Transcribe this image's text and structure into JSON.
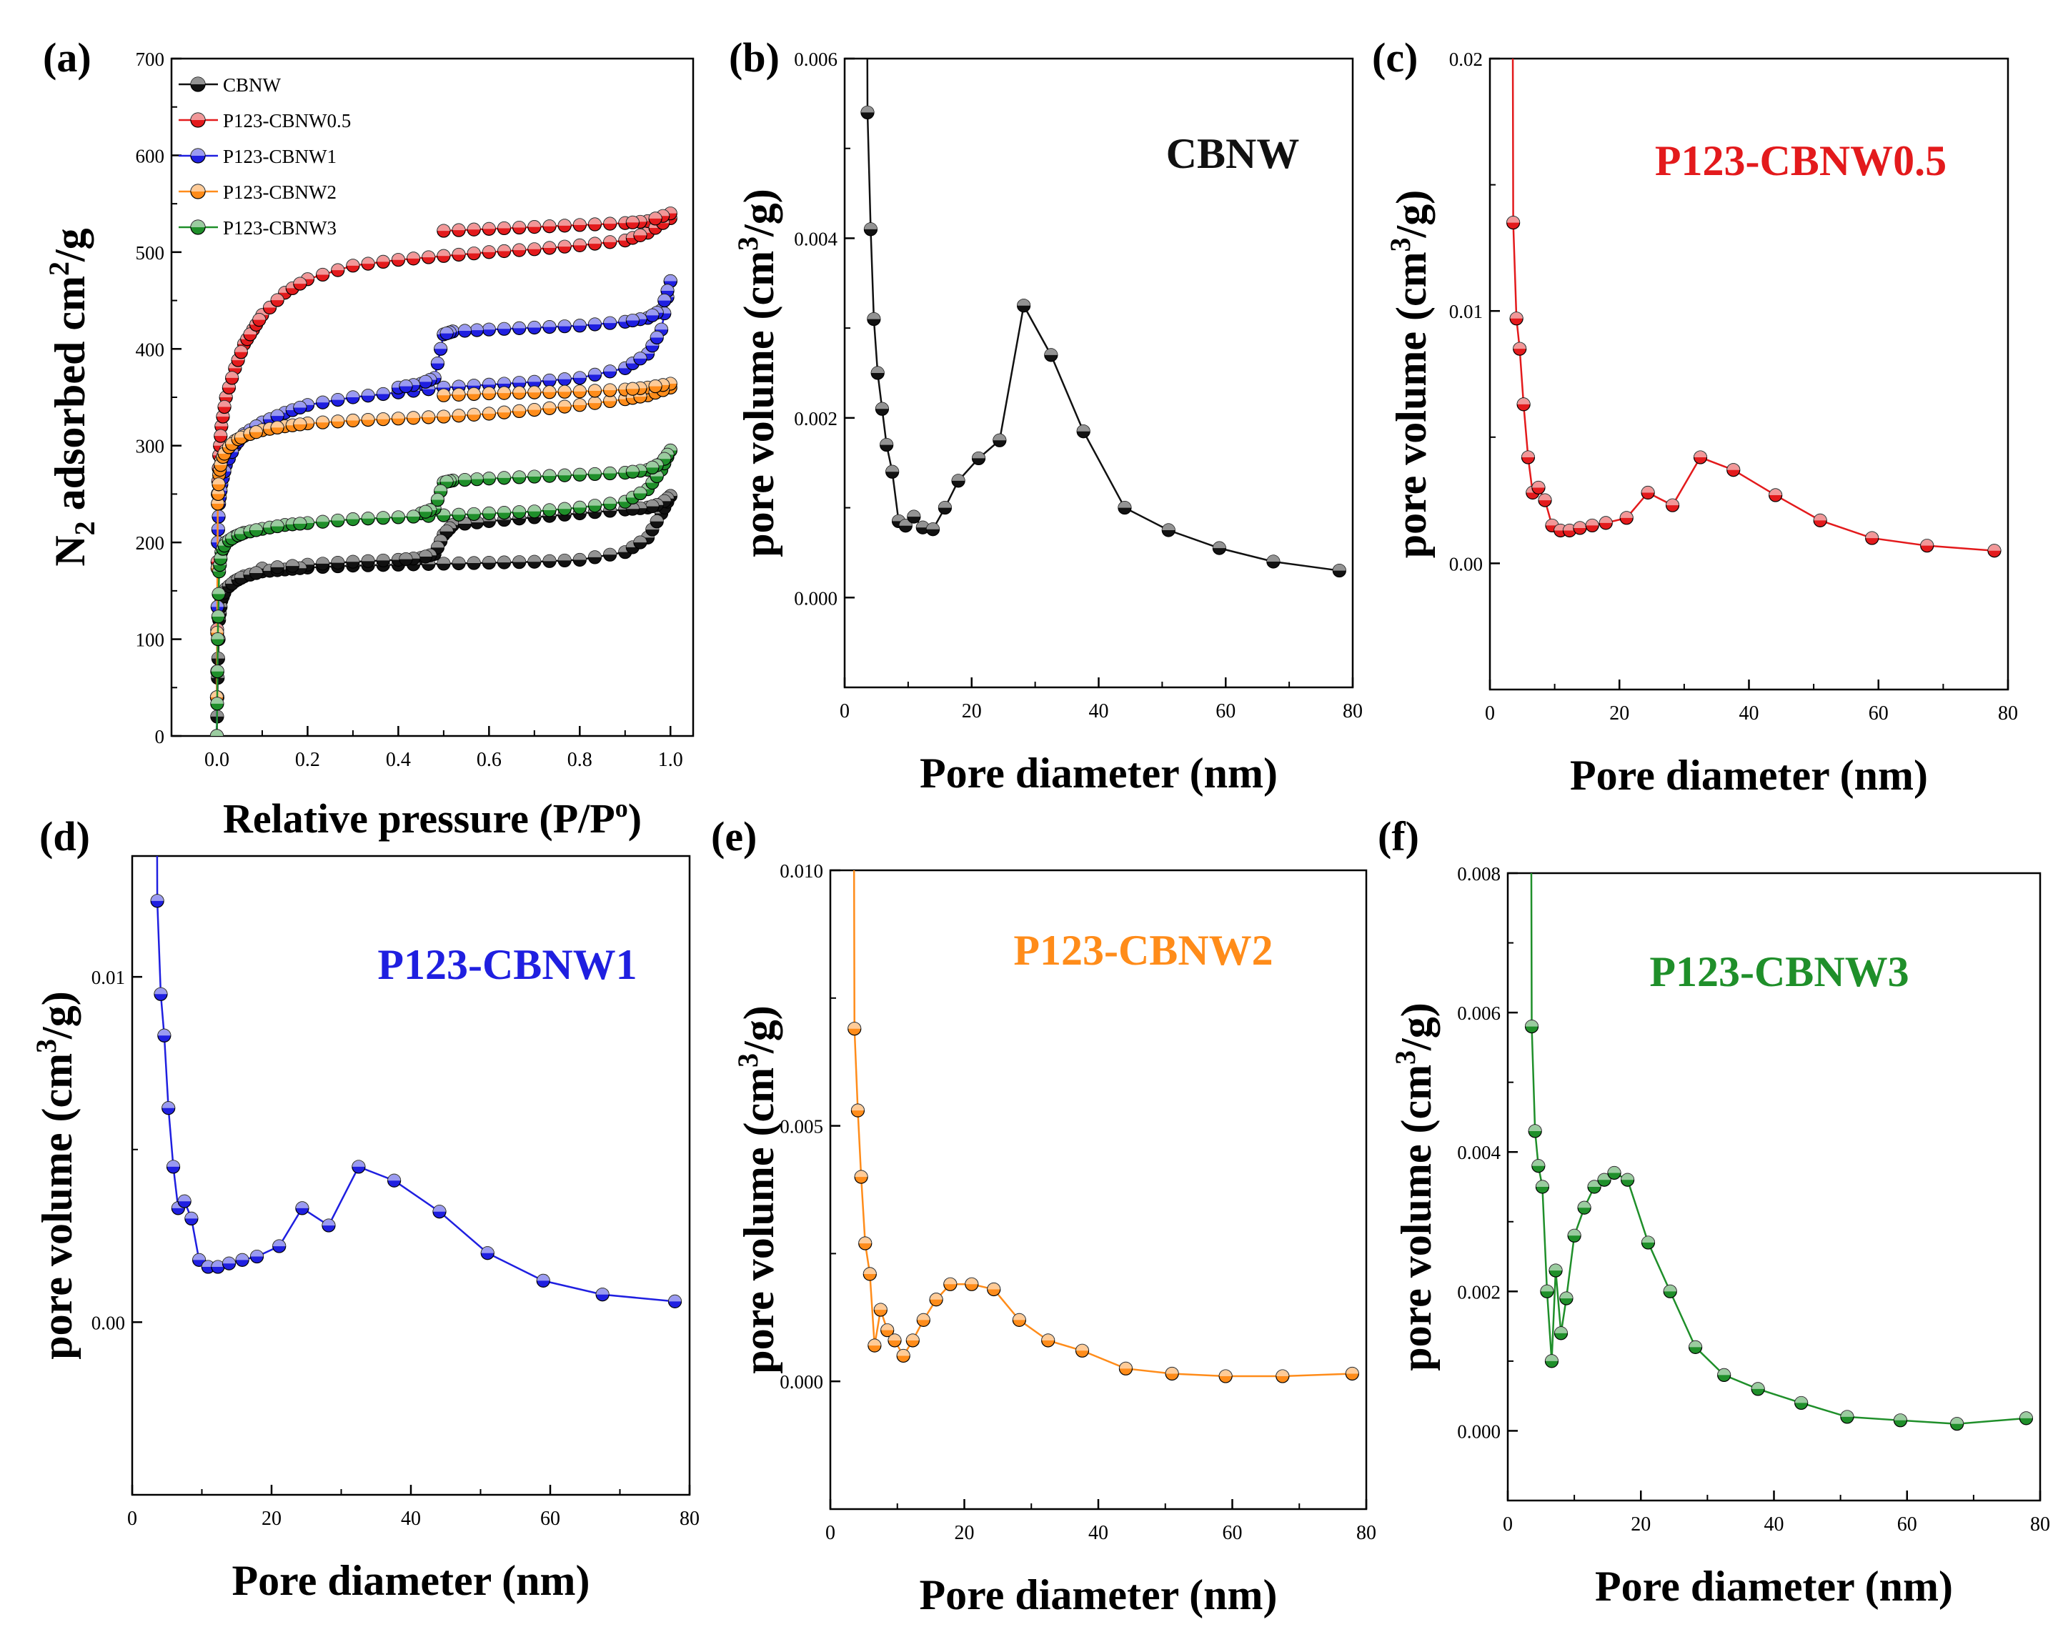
{
  "chart_data": [
    {
      "type": "scatter",
      "panel_label": "(a)",
      "xlabel": "Relative pressure (P/P",
      "xlabel_sup": "o",
      "xlabel_end": ")",
      "ylabel": "N",
      "ylabel_sub": "2",
      "ylabel_mid": " adsorbed cm",
      "ylabel_sup": "2",
      "ylabel_end": "/g",
      "xlim": [
        -0.1,
        1.05
      ],
      "ylim": [
        0,
        700
      ],
      "xticks": [
        0.0,
        0.2,
        0.4,
        0.6,
        0.8,
        1.0
      ],
      "xtick_labels": [
        "0.0",
        "0.2",
        "0.4",
        "0.6",
        "0.8",
        "1.0"
      ],
      "yticks": [
        0,
        100,
        200,
        300,
        400,
        500,
        600,
        700
      ],
      "ytick_labels": [
        "0",
        "100",
        "200",
        "300",
        "400",
        "500",
        "600",
        "700"
      ],
      "legend_position": "top-left",
      "series": [
        {
          "name": "CBNW",
          "color": "#111111",
          "adsorption_x": [
            0.0,
            0.002,
            0.005,
            0.01,
            0.02,
            0.04,
            0.06,
            0.1,
            0.15,
            0.2,
            0.3,
            0.4,
            0.5,
            0.6,
            0.7,
            0.8,
            0.9,
            0.95,
            0.98,
            1.0
          ],
          "adsorption_y": [
            0,
            60,
            120,
            140,
            152,
            160,
            165,
            170,
            172,
            174,
            176,
            177,
            178,
            179,
            180,
            182,
            190,
            205,
            230,
            248
          ],
          "desorption_x": [
            1.0,
            0.98,
            0.95,
            0.9,
            0.8,
            0.7,
            0.6,
            0.52,
            0.5,
            0.48,
            0.45,
            0.4,
            0.3,
            0.2,
            0.1
          ],
          "desorption_y": [
            248,
            240,
            236,
            234,
            230,
            226,
            222,
            218,
            208,
            188,
            184,
            182,
            180,
            177,
            173
          ]
        },
        {
          "name": "P123-CBNW0.5",
          "color": "#e31a1c",
          "adsorption_x": [
            0.0,
            0.002,
            0.005,
            0.01,
            0.02,
            0.04,
            0.06,
            0.08,
            0.1,
            0.15,
            0.2,
            0.3,
            0.4,
            0.5,
            0.6,
            0.7,
            0.8,
            0.9,
            0.95,
            1.0
          ],
          "adsorption_y": [
            40,
            250,
            290,
            320,
            350,
            380,
            405,
            420,
            435,
            458,
            472,
            486,
            492,
            496,
            500,
            503,
            507,
            512,
            520,
            535
          ],
          "desorption_x": [
            1.0,
            0.95,
            0.9,
            0.8,
            0.7,
            0.6,
            0.5
          ],
          "desorption_y": [
            540,
            532,
            530,
            528,
            526,
            524,
            522
          ]
        },
        {
          "name": "P123-CBNW1",
          "color": "#1f1fe0",
          "adsorption_x": [
            0.0,
            0.002,
            0.005,
            0.01,
            0.02,
            0.04,
            0.06,
            0.1,
            0.15,
            0.2,
            0.3,
            0.4,
            0.5,
            0.6,
            0.7,
            0.8,
            0.9,
            0.95,
            0.98,
            1.0
          ],
          "adsorption_y": [
            0,
            200,
            240,
            260,
            280,
            300,
            312,
            324,
            334,
            342,
            350,
            355,
            360,
            363,
            366,
            370,
            380,
            395,
            420,
            470
          ],
          "desorption_x": [
            1.0,
            0.98,
            0.95,
            0.9,
            0.8,
            0.7,
            0.6,
            0.52,
            0.5,
            0.48,
            0.45,
            0.4
          ],
          "desorption_y": [
            470,
            440,
            432,
            428,
            424,
            422,
            420,
            418,
            415,
            370,
            364,
            360
          ]
        },
        {
          "name": "P123-CBNW2",
          "color": "#ff8c1a",
          "adsorption_x": [
            0.0,
            0.002,
            0.005,
            0.01,
            0.02,
            0.04,
            0.06,
            0.1,
            0.15,
            0.2,
            0.3,
            0.4,
            0.5,
            0.6,
            0.7,
            0.8,
            0.9,
            0.95,
            1.0
          ],
          "adsorption_y": [
            40,
            240,
            270,
            285,
            295,
            305,
            310,
            316,
            320,
            323,
            326,
            328,
            330,
            333,
            337,
            342,
            348,
            352,
            360
          ],
          "desorption_x": [
            1.0,
            0.95,
            0.9,
            0.8,
            0.7,
            0.6,
            0.5
          ],
          "desorption_y": [
            364,
            360,
            358,
            356,
            355,
            354,
            352
          ]
        },
        {
          "name": "P123-CBNW3",
          "color": "#1f8f2a",
          "adsorption_x": [
            0.0,
            0.002,
            0.005,
            0.01,
            0.02,
            0.04,
            0.06,
            0.1,
            0.15,
            0.2,
            0.3,
            0.4,
            0.5,
            0.6,
            0.7,
            0.8,
            0.9,
            0.95,
            0.98,
            1.0
          ],
          "adsorption_y": [
            0,
            100,
            170,
            190,
            200,
            206,
            210,
            214,
            218,
            220,
            224,
            226,
            228,
            230,
            232,
            236,
            242,
            255,
            275,
            295
          ],
          "desorption_x": [
            1.0,
            0.98,
            0.95,
            0.9,
            0.8,
            0.7,
            0.6,
            0.52,
            0.5,
            0.48,
            0.45
          ],
          "desorption_y": [
            295,
            282,
            275,
            272,
            270,
            268,
            266,
            264,
            262,
            235,
            230
          ]
        }
      ]
    },
    {
      "type": "line",
      "panel_label": "(b)",
      "inset_label": "CBNW",
      "color": "#111111",
      "xlabel": "Pore diameter (nm)",
      "ylabel": "pore volume (cm",
      "ylabel_sup": "3",
      "ylabel_end": "/g)",
      "xlim": [
        0,
        80
      ],
      "ylim": [
        -0.001,
        0.006
      ],
      "xticks": [
        0,
        20,
        40,
        60,
        80
      ],
      "xtick_labels": [
        "0",
        "20",
        "40",
        "60",
        "80"
      ],
      "yticks": [
        0.0,
        0.002,
        0.004,
        0.006
      ],
      "ytick_labels": [
        "0.000",
        "0.002",
        "0.004",
        "0.006"
      ],
      "x": [
        3.6,
        4.1,
        4.6,
        5.2,
        5.9,
        6.6,
        7.5,
        8.5,
        9.6,
        10.9,
        12.3,
        13.9,
        15.8,
        17.9,
        21.1,
        24.4,
        28.2,
        32.5,
        37.6,
        44.1,
        51.0,
        59.0,
        67.5,
        77.9
      ],
      "y": [
        0.0054,
        0.0041,
        0.0031,
        0.0025,
        0.0021,
        0.0017,
        0.0014,
        0.00085,
        0.0008,
        0.0009,
        0.00078,
        0.00076,
        0.001,
        0.0013,
        0.00155,
        0.00175,
        0.00325,
        0.0027,
        0.00185,
        0.001,
        0.00075,
        0.00055,
        0.0004,
        0.0003
      ]
    },
    {
      "type": "line",
      "panel_label": "(c)",
      "inset_label": "P123-CBNW0.5",
      "color": "#e31a1c",
      "xlabel": "Pore diameter (nm)",
      "ylabel": "pore volume (cm",
      "ylabel_sup": "3",
      "ylabel_end": "/g)",
      "xlim": [
        0,
        80
      ],
      "ylim": [
        -0.005,
        0.02
      ],
      "xticks": [
        0,
        20,
        40,
        60,
        80
      ],
      "xtick_labels": [
        "0",
        "20",
        "40",
        "60",
        "80"
      ],
      "yticks": [
        0.0,
        0.01,
        0.02
      ],
      "ytick_labels": [
        "0.00",
        "0.01",
        "0.02"
      ],
      "x": [
        3.6,
        4.1,
        4.6,
        5.2,
        5.9,
        6.6,
        7.5,
        8.5,
        9.6,
        10.9,
        12.3,
        13.9,
        15.8,
        17.9,
        21.1,
        24.4,
        28.2,
        32.5,
        37.6,
        44.1,
        51.0,
        59.0,
        67.5,
        77.9
      ],
      "y": [
        0.0135,
        0.0097,
        0.0085,
        0.0063,
        0.0042,
        0.0028,
        0.003,
        0.0025,
        0.0015,
        0.0013,
        0.0013,
        0.0014,
        0.0015,
        0.0016,
        0.0018,
        0.0028,
        0.0023,
        0.0042,
        0.0037,
        0.0027,
        0.0017,
        0.001,
        0.0007,
        0.0005
      ]
    },
    {
      "type": "line",
      "panel_label": "(d)",
      "inset_label": "P123-CBNW1",
      "color": "#1f1fe0",
      "xlabel": "Pore diameter (nm)",
      "ylabel": "pore volume (cm",
      "ylabel_sup": "3",
      "ylabel_end": "/g)",
      "xlim": [
        0,
        80
      ],
      "ylim": [
        -0.005,
        0.0135
      ],
      "xticks": [
        0,
        20,
        40,
        60,
        80
      ],
      "xtick_labels": [
        "0",
        "20",
        "40",
        "60",
        "80"
      ],
      "yticks": [
        0.0,
        0.01
      ],
      "ytick_labels": [
        "0.00",
        "0.01"
      ],
      "x": [
        3.6,
        4.1,
        4.6,
        5.2,
        5.9,
        6.6,
        7.5,
        8.5,
        9.6,
        10.9,
        12.3,
        13.9,
        15.8,
        17.9,
        21.1,
        24.4,
        28.2,
        32.5,
        37.6,
        44.1,
        51.0,
        59.0,
        67.5,
        77.9
      ],
      "y": [
        0.0122,
        0.0095,
        0.0083,
        0.0062,
        0.0045,
        0.0033,
        0.0035,
        0.003,
        0.0018,
        0.0016,
        0.0016,
        0.0017,
        0.0018,
        0.0019,
        0.0022,
        0.0033,
        0.0028,
        0.0045,
        0.0041,
        0.0032,
        0.002,
        0.0012,
        0.0008,
        0.0006
      ]
    },
    {
      "type": "line",
      "panel_label": "(e)",
      "inset_label": "P123-CBNW2",
      "color": "#ff8c1a",
      "xlabel": "Pore diameter (nm)",
      "ylabel": "pore volume (cm",
      "ylabel_sup": "3",
      "ylabel_end": "/g)",
      "xlim": [
        0,
        80
      ],
      "ylim": [
        -0.0025,
        0.01
      ],
      "xticks": [
        0,
        20,
        40,
        60,
        80
      ],
      "xtick_labels": [
        "0",
        "20",
        "40",
        "60",
        "80"
      ],
      "yticks": [
        0.0,
        0.005,
        0.01
      ],
      "ytick_labels": [
        "0.000",
        "0.005",
        "0.010"
      ],
      "x": [
        3.6,
        4.1,
        4.6,
        5.2,
        5.9,
        6.6,
        7.5,
        8.5,
        9.6,
        10.9,
        12.3,
        13.9,
        15.8,
        17.9,
        21.1,
        24.4,
        28.2,
        32.5,
        37.6,
        44.1,
        51.0,
        59.0,
        67.5,
        77.9
      ],
      "y": [
        0.0069,
        0.0053,
        0.004,
        0.0027,
        0.0021,
        0.0007,
        0.0014,
        0.001,
        0.0008,
        0.0005,
        0.0008,
        0.0012,
        0.0016,
        0.0019,
        0.0019,
        0.0018,
        0.0012,
        0.0008,
        0.0006,
        0.00025,
        0.00015,
        0.0001,
        0.0001,
        0.00015
      ]
    },
    {
      "type": "line",
      "panel_label": "(f)",
      "inset_label": "P123-CBNW3",
      "color": "#1f8f2a",
      "xlabel": "Pore diameter (nm)",
      "ylabel": "pore volume (cm",
      "ylabel_sup": "3",
      "ylabel_end": "/g)",
      "xlim": [
        0,
        80
      ],
      "ylim": [
        -0.001,
        0.008
      ],
      "xticks": [
        0,
        20,
        40,
        60,
        80
      ],
      "xtick_labels": [
        "0",
        "20",
        "40",
        "60",
        "80"
      ],
      "yticks": [
        0.0,
        0.002,
        0.004,
        0.006,
        0.008
      ],
      "ytick_labels": [
        "0.000",
        "0.002",
        "0.004",
        "0.006",
        "0.008"
      ],
      "x": [
        3.6,
        4.1,
        4.6,
        5.2,
        5.9,
        6.6,
        7.2,
        8.0,
        8.8,
        10.0,
        11.5,
        13.0,
        14.5,
        16.0,
        18.0,
        21.1,
        24.4,
        28.2,
        32.5,
        37.6,
        44.1,
        51.0,
        59.0,
        67.5,
        77.9
      ],
      "y": [
        0.0058,
        0.0043,
        0.0038,
        0.0035,
        0.002,
        0.001,
        0.0023,
        0.0014,
        0.0019,
        0.0028,
        0.0032,
        0.0035,
        0.0036,
        0.0037,
        0.0036,
        0.0027,
        0.002,
        0.0012,
        0.0008,
        0.0006,
        0.0004,
        0.0002,
        0.00015,
        0.0001,
        0.00018
      ]
    }
  ]
}
